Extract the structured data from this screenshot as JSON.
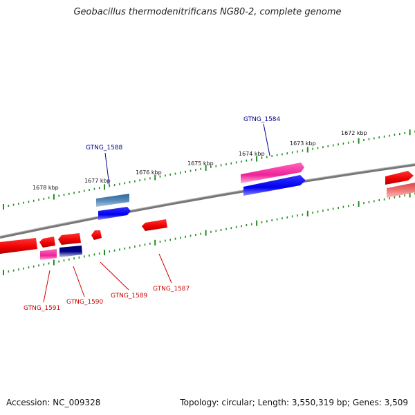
{
  "title": "Geobacillus thermodenitrificans NG80-2, complete genome",
  "footer": {
    "accession": "Accession: NC_009328",
    "stats": "Topology: circular; Length: 3,550,319 bp; Genes: 3,509"
  },
  "scale_labels": [
    "1678 kbp",
    "1677 kbp",
    "1676 kbp",
    "1675 kbp",
    "1674 kbp",
    "1673 kbp",
    "1672 kbp"
  ],
  "gene_labels": {
    "top": [
      "GTNG_1588",
      "GTNG_1584"
    ],
    "bottom": [
      "GTNG_1591",
      "GTNG_1590",
      "GTNG_1589",
      "GTNG_1587"
    ]
  },
  "colors": {
    "label_top": "#00008b",
    "label_bottom": "#cc0000",
    "tick": "#228b22",
    "backbone": "#888888"
  }
}
